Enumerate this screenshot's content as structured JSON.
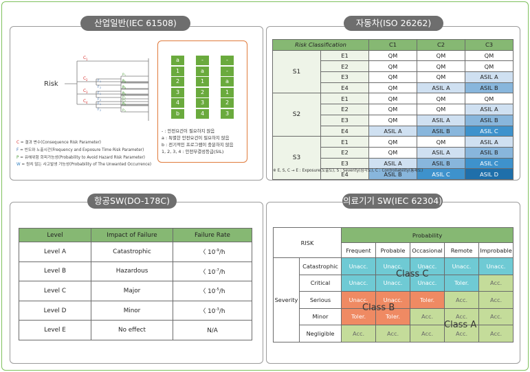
{
  "panels": {
    "iec61508": {
      "title": "산업일반(IEC 61508)"
    },
    "iso26262": {
      "title": "자동차(ISO 26262)"
    },
    "do178c": {
      "title": "항공SW(DO-178C)"
    },
    "iec62304": {
      "title": "의료기기 SW(IEC 62304)"
    }
  },
  "riskgraph": {
    "risk_label": "Risk",
    "c_nodes": [
      "C",
      "C",
      "C",
      "C"
    ],
    "c_subs": [
      "1",
      "2",
      "3",
      "4"
    ],
    "f_nodes": [
      "F",
      "F",
      "F",
      "F",
      "F",
      "F"
    ],
    "f_subs": [
      "1",
      "2",
      "1",
      "2",
      "1",
      "2"
    ],
    "p_nodes": [
      "P",
      "P",
      "P",
      "P",
      "P",
      "P",
      "P",
      "P",
      "P",
      "P",
      "P",
      "P"
    ],
    "p_subs": [
      "1",
      "2",
      "1",
      "2",
      "1",
      "2",
      "1",
      "2",
      "1",
      "2",
      "1",
      "2"
    ],
    "w_heads": [
      "W",
      "W",
      "W"
    ],
    "w_subs": [
      "3",
      "2",
      "1"
    ],
    "w_col1": [
      "a",
      "1",
      "2",
      "3",
      "4",
      "b"
    ],
    "w_col2": [
      "-",
      "a",
      "1",
      "2",
      "3",
      "4"
    ],
    "w_col3": [
      "-",
      "-",
      "a",
      "1",
      "2",
      "3"
    ],
    "notes": [
      "- : 안전요건이 필요하지 않음",
      "a : 특별한 안전요건이 필요하지 않음",
      "b : 전기적인 프로그램이 충분하지 않음",
      "1, 2, 3, 4 : 안전무결성등급(SIL)"
    ],
    "legend": [
      {
        "letter": "C",
        "color": "#d6302e",
        "text": " = 결과 변수(Consequence Risk Parameter)"
      },
      {
        "letter": "F",
        "color": "#3a6fb0",
        "text": " = 빈도와 노출시간(Frequency and Exposure Time Risk Parameter)"
      },
      {
        "letter": "P",
        "color": "#4a9a36",
        "text": " = 유해위험 회피가능성(Probability to Avoid Hazard Risk Parameter)"
      },
      {
        "letter": "W",
        "color": "#2f7fc0",
        "text": " = 원치 않는 사고발생 가능성(Probability of The Unwanted Occurrence)"
      }
    ]
  },
  "iso": {
    "header": "Risk Classification",
    "cols": [
      "C1",
      "C2",
      "C3"
    ],
    "groups": [
      {
        "s": "S1",
        "rows": [
          {
            "e": "E1",
            "v": [
              "QM",
              "QM",
              "QM"
            ],
            "c": [
              "w",
              "w",
              "w"
            ]
          },
          {
            "e": "E2",
            "v": [
              "QM",
              "QM",
              "QM"
            ],
            "c": [
              "w",
              "w",
              "w"
            ]
          },
          {
            "e": "E3",
            "v": [
              "QM",
              "QM",
              "ASIL A"
            ],
            "c": [
              "w",
              "w",
              "l1"
            ]
          },
          {
            "e": "E4",
            "v": [
              "QM",
              "ASIL A",
              "ASIL B"
            ],
            "c": [
              "w",
              "l1",
              "l2"
            ]
          }
        ]
      },
      {
        "s": "S2",
        "rows": [
          {
            "e": "E1",
            "v": [
              "QM",
              "QM",
              "QM"
            ],
            "c": [
              "w",
              "w",
              "w"
            ]
          },
          {
            "e": "E2",
            "v": [
              "QM",
              "QM",
              "ASIL A"
            ],
            "c": [
              "w",
              "w",
              "l1"
            ]
          },
          {
            "e": "E3",
            "v": [
              "QM",
              "ASIL A",
              "ASIL B"
            ],
            "c": [
              "w",
              "l1",
              "l2"
            ]
          },
          {
            "e": "E4",
            "v": [
              "ASIL A",
              "ASIL B",
              "ASIL C"
            ],
            "c": [
              "l1",
              "l2",
              "l3"
            ]
          }
        ]
      },
      {
        "s": "S3",
        "rows": [
          {
            "e": "E1",
            "v": [
              "QM",
              "QM",
              "ASIL A"
            ],
            "c": [
              "w",
              "w",
              "l1"
            ]
          },
          {
            "e": "E2",
            "v": [
              "QM",
              "ASIL A",
              "ASIL B"
            ],
            "c": [
              "w",
              "l1",
              "l2"
            ]
          },
          {
            "e": "E3",
            "v": [
              "ASIL A",
              "ASIL B",
              "ASIL C"
            ],
            "c": [
              "l1",
              "l2",
              "l3"
            ]
          },
          {
            "e": "E4",
            "v": [
              "ASIL B",
              "ASIL C",
              "ASIL D"
            ],
            "c": [
              "l2",
              "l3",
              "l4"
            ]
          }
        ]
      }
    ],
    "note": "※ E, S, C → E : Exposure(노출도), S : Severity(심각도), C : Controllability(통제도)"
  },
  "do": {
    "headers": [
      "Level",
      "Impact of Failure",
      "Failure Rate"
    ],
    "rows": [
      {
        "level": "Level A",
        "impact": "Catastrophic",
        "rate_pre": "〈 10",
        "rate_exp": "-9",
        "rate_post": "/h"
      },
      {
        "level": "Level B",
        "impact": "Hazardous",
        "rate_pre": "〈 10",
        "rate_exp": "-7",
        "rate_post": "/h"
      },
      {
        "level": "Level C",
        "impact": "Major",
        "rate_pre": "〈 10",
        "rate_exp": "-5",
        "rate_post": "/h"
      },
      {
        "level": "Level D",
        "impact": "Minor",
        "rate_pre": "〈 10",
        "rate_exp": "-3",
        "rate_post": "/h"
      },
      {
        "level": "Level E",
        "impact": "No effect",
        "rate_pre": "N/A",
        "rate_exp": "",
        "rate_post": ""
      }
    ]
  },
  "med": {
    "risk": "RISK",
    "probability": "Probability",
    "prob_cols": [
      "Frequent",
      "Probable",
      "Occasional",
      "Remote",
      "Improbable"
    ],
    "severity": "Severity",
    "rows": [
      {
        "sev": "Catastrophic",
        "v": [
          "Unacc.",
          "Unacc.",
          "Unacc.",
          "Unacc.",
          "Unacc."
        ],
        "c": [
          "cy",
          "cy",
          "cy",
          "cy",
          "cy"
        ]
      },
      {
        "sev": "Critical",
        "v": [
          "Unacc.",
          "Unacc.",
          "Unacc.",
          "Toler.",
          "Acc."
        ],
        "c": [
          "cy",
          "cy",
          "cy",
          "cy",
          "gr"
        ]
      },
      {
        "sev": "Serious",
        "v": [
          "Unacc.",
          "Unacc.",
          "Toler.",
          "Acc.",
          "Acc."
        ],
        "c": [
          "or",
          "or",
          "or",
          "gr",
          "gr"
        ]
      },
      {
        "sev": "Minor",
        "v": [
          "Toler.",
          "Toler.",
          "Acc.",
          "Acc.",
          "Acc."
        ],
        "c": [
          "or",
          "or",
          "gr",
          "gr",
          "gr"
        ]
      },
      {
        "sev": "Negligible",
        "v": [
          "Acc.",
          "Acc.",
          "Acc.",
          "Acc.",
          "Acc."
        ],
        "c": [
          "gr",
          "gr",
          "gr",
          "gr",
          "gr"
        ]
      }
    ],
    "class_c": "Class C",
    "class_b": "Class B",
    "class_a": "Class A"
  }
}
